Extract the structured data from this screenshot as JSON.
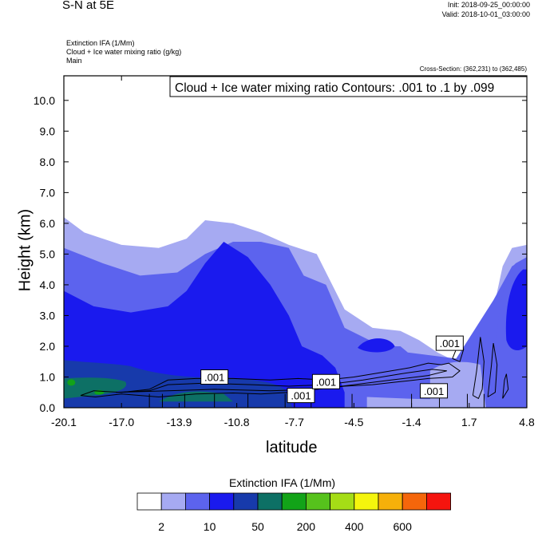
{
  "header": {
    "title": "S-N at 5E",
    "init": "Init: 2018-09-25_00:00:00",
    "valid": "Valid: 2018-10-01_03:00:00",
    "field1": "Extinction IFA   (1/Mm)",
    "field2": "Cloud + Ice water mixing ratio   (g/kg)",
    "field3": "Main",
    "cross_section": "Cross-Section: (362,231) to (362,485)"
  },
  "colors": {
    "c1": "#ffffff",
    "c2": "#a6aaf2",
    "c3": "#5c63ee",
    "c4": "#1a1aee",
    "c5": "#173aab",
    "c6": "#0d7065",
    "c7": "#12a318",
    "c8": "#56c21c",
    "c9": "#a5dd16",
    "c10": "#f5f50d",
    "c11": "#f6b00a",
    "c12": "#f5660b",
    "c13": "#f5140e"
  },
  "chart_data": {
    "type": "contour",
    "title": "S-N at 5E",
    "xlabel": "latitude",
    "ylabel": "Height (km)",
    "xlim": [
      -20.1,
      4.8
    ],
    "ylim": [
      0.0,
      10.8
    ],
    "x_ticks": [
      "-20.1",
      "-17.0",
      "-13.9",
      "-10.8",
      "-7.7",
      "-4.5",
      "-1.4",
      "1.7",
      "4.8"
    ],
    "y_ticks": [
      "0.0",
      "1.0",
      "2.0",
      "3.0",
      "4.0",
      "5.0",
      "6.0",
      "7.0",
      "8.0",
      "9.0",
      "10.0"
    ],
    "contour_title": "Cloud + Ice water mixing ratio Contours: .001 to .1 by .099",
    "contour_labels": [
      ".001",
      ".001",
      ".001",
      ".001",
      ".001"
    ],
    "colorbar": {
      "title": "Extinction IFA  (1/Mm)",
      "labels": [
        "2",
        "10",
        "50",
        "200",
        "400",
        "600"
      ],
      "n_colors": 13
    },
    "fill_series": [
      {
        "name": "light",
        "level": 2,
        "x": [
          -20.1,
          -19,
          -17,
          -15,
          -13.5,
          -12.5,
          -11,
          -9.5,
          -8,
          -6.5,
          -5,
          -3.5,
          -2,
          -1,
          0,
          1,
          2,
          3,
          3.5,
          4,
          4.8
        ],
        "y": [
          6.2,
          5.7,
          5.3,
          5.2,
          5.5,
          6.1,
          6.0,
          5.7,
          5.3,
          5.0,
          3.2,
          2.6,
          2.5,
          2.2,
          1.8,
          1.5,
          1.6,
          3.2,
          4.6,
          5.2,
          5.3
        ]
      },
      {
        "name": "medium",
        "level": 10,
        "x": [
          -20.1,
          -18,
          -16,
          -14,
          -12.5,
          -11,
          -9.5,
          -8,
          -7.2,
          -6,
          -5,
          -3,
          -2,
          -1.6,
          1,
          3,
          4,
          4.8
        ],
        "y": [
          5.2,
          4.7,
          4.3,
          4.4,
          5.0,
          5.4,
          5.4,
          5.2,
          4.3,
          4.0,
          2.6,
          2.0,
          2.0,
          1.8,
          1.6,
          3.5,
          4.6,
          4.9
        ]
      },
      {
        "name": "blue",
        "level": 50,
        "x": [
          -20.1,
          -18.5,
          -16.5,
          -14.5,
          -13.5,
          -12.5,
          -11.5,
          -10.2,
          -9,
          -8,
          -7.3,
          -6.2,
          -5.5,
          -5
        ],
        "y": [
          3.8,
          3.3,
          3.1,
          3.3,
          3.8,
          4.7,
          5.4,
          4.9,
          4.0,
          3.0,
          2.0,
          1.7,
          1.3,
          0.5
        ]
      }
    ]
  }
}
